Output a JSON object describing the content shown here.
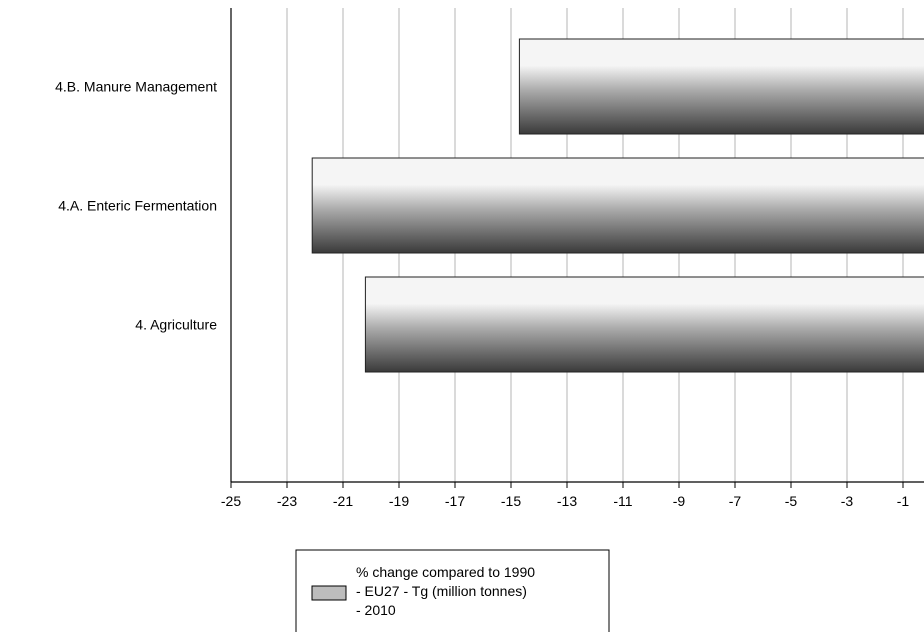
{
  "chart_data": {
    "type": "bar",
    "orientation": "horizontal",
    "categories": [
      "4.B. Manure Management",
      "4.A. Enteric Fermentation",
      "4. Agriculture"
    ],
    "series": [
      {
        "name": "% change compared to 1990 - EU27 - Tg (million tonnes) - 2010",
        "name_lines": [
          "% change compared to 1990",
          "- EU27 - Tg (million tonnes)",
          "- 2010"
        ],
        "values": [
          -14.7,
          -22.1,
          -20.2
        ]
      }
    ],
    "xlim": [
      -25,
      0
    ],
    "xticks": [
      -25,
      -23,
      -21,
      -19,
      -17,
      -15,
      -13,
      -11,
      -9,
      -7,
      -5,
      -3,
      -1
    ],
    "grid": true,
    "legend_position": "bottom",
    "colors": {
      "bar_light": "#f5f5f5",
      "bar_mid": "#a8a8a8",
      "bar_dark": "#3a3a3a",
      "grid": "#b4b4b4",
      "axis": "#000000",
      "legend_swatch": "#bdbdbd"
    }
  }
}
